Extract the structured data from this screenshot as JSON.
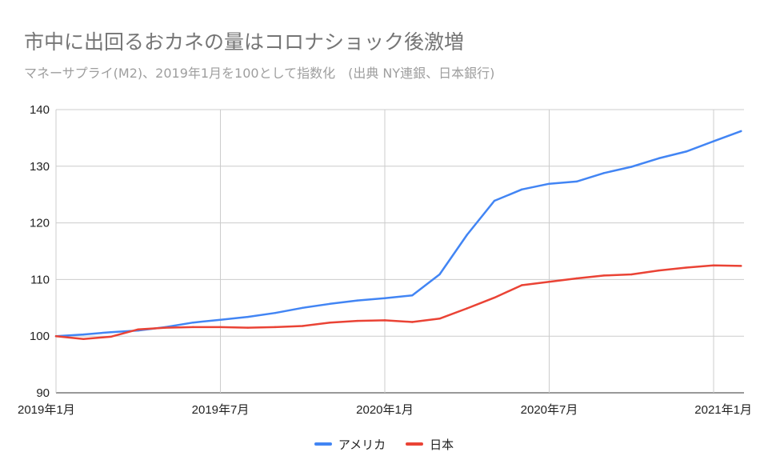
{
  "chart_data": {
    "type": "line",
    "title": "市中に出回るおカネの量はコロナショック後激増",
    "subtitle": "マネーサプライ(M2)、2019年1月を100として指数化　(出典 NY連銀、日本銀行)",
    "x": [
      "2019-01",
      "2019-02",
      "2019-03",
      "2019-04",
      "2019-05",
      "2019-06",
      "2019-07",
      "2019-08",
      "2019-09",
      "2019-10",
      "2019-11",
      "2019-12",
      "2020-01",
      "2020-02",
      "2020-03",
      "2020-04",
      "2020-05",
      "2020-06",
      "2020-07",
      "2020-08",
      "2020-09",
      "2020-10",
      "2020-11",
      "2020-12",
      "2021-01",
      "2021-02"
    ],
    "x_tick_labels": [
      {
        "x": "2019-01",
        "label": "2019年1月"
      },
      {
        "x": "2019-07",
        "label": "2019年7月"
      },
      {
        "x": "2020-01",
        "label": "2020年1月"
      },
      {
        "x": "2020-07",
        "label": "2020年7月"
      },
      {
        "x": "2021-01",
        "label": "2021年1月"
      }
    ],
    "ylim": [
      90,
      140
    ],
    "y_ticks": [
      90,
      100,
      110,
      120,
      130,
      140
    ],
    "series": [
      {
        "name": "アメリカ",
        "color": "#4285f4",
        "values": [
          100,
          100.3,
          100.7,
          101.0,
          101.6,
          102.4,
          102.9,
          103.4,
          104.1,
          105.0,
          105.7,
          106.3,
          106.7,
          107.2,
          110.9,
          117.9,
          123.9,
          125.9,
          126.9,
          127.3,
          128.8,
          129.9,
          131.4,
          132.6,
          134.4,
          136.2
        ]
      },
      {
        "name": "日本",
        "color": "#ea4335",
        "values": [
          100,
          99.5,
          99.9,
          101.2,
          101.5,
          101.6,
          101.6,
          101.5,
          101.6,
          101.8,
          102.4,
          102.7,
          102.8,
          102.5,
          103.1,
          104.9,
          106.8,
          109.0,
          109.6,
          110.2,
          110.7,
          110.9,
          111.6,
          112.1,
          112.5,
          112.4
        ]
      }
    ],
    "grid": true,
    "legend_position": "bottom"
  }
}
